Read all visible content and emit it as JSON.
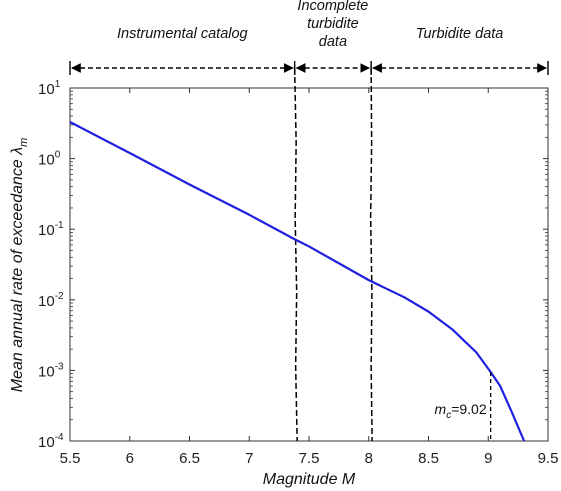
{
  "chart_data": {
    "type": "line",
    "xlabel": "Magnitude M",
    "ylabel": "Mean annual rate of exceedance λ",
    "ylabel_subscript": "m",
    "xlim": [
      5.5,
      9.5
    ],
    "ylim": [
      0.0001,
      10
    ],
    "yscale": "log",
    "grid": false,
    "x_ticks": [
      "5.5",
      "6",
      "6.5",
      "7",
      "7.5",
      "8",
      "8.5",
      "9",
      "9.5"
    ],
    "y_ticks": [
      {
        "base": "10",
        "exp": "1",
        "value": 10
      },
      {
        "base": "10",
        "exp": "0",
        "value": 1
      },
      {
        "base": "10",
        "exp": "-1",
        "value": 0.1
      },
      {
        "base": "10",
        "exp": "-2",
        "value": 0.01
      },
      {
        "base": "10",
        "exp": "-3",
        "value": 0.001
      },
      {
        "base": "10",
        "exp": "-4",
        "value": 0.0001
      }
    ],
    "series": [
      {
        "color": "#1f1fe0",
        "x": [
          5.5,
          6.0,
          6.5,
          7.0,
          7.38,
          7.5,
          8.0,
          8.3,
          8.5,
          8.7,
          8.9,
          9.02,
          9.1,
          9.2,
          9.3
        ],
        "y": [
          3.3,
          1.2,
          0.43,
          0.16,
          0.072,
          0.057,
          0.019,
          0.0108,
          0.0068,
          0.0038,
          0.0018,
          0.00095,
          0.0006,
          0.00025,
          0.0001
        ]
      }
    ],
    "regions": [
      {
        "label_lines": [
          "Instrumental catalog"
        ],
        "from": 5.5,
        "to": 7.38
      },
      {
        "label_lines": [
          "Incomplete",
          "turbidite",
          "data"
        ],
        "from": 7.38,
        "to": 8.02
      },
      {
        "label_lines": [
          "Turbidite data"
        ],
        "from": 8.02,
        "to": 9.5
      }
    ],
    "boundaries": [
      7.38,
      8.02
    ],
    "mc": {
      "label": "m",
      "subscript": "c",
      "value_text": "=9.02",
      "x": 9.02,
      "y": 0.00095
    }
  }
}
